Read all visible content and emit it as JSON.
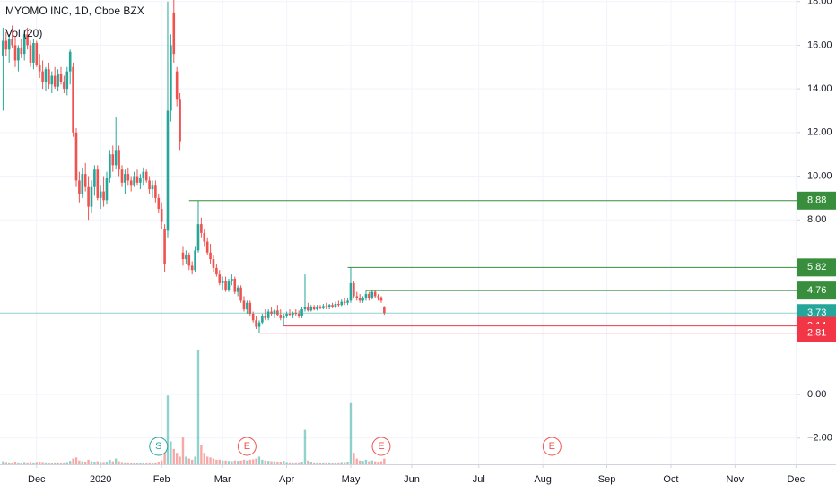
{
  "chart_data": {
    "type": "candlestick",
    "title": "MYOMO INC, 1D, Cboe BZX",
    "subtitle": "Vol (20)",
    "up_color": "#26a69a",
    "down_color": "#ef5350",
    "grid": true,
    "xlim": [
      -1,
      260.2
    ],
    "ylim": [
      -3.2,
      18.07
    ],
    "xticks": [
      {
        "value": 11,
        "label": "Dec"
      },
      {
        "value": 32,
        "label": "2020"
      },
      {
        "value": 52,
        "label": "Feb"
      },
      {
        "value": 72,
        "label": "Mar"
      },
      {
        "value": 93,
        "label": "Apr"
      },
      {
        "value": 114,
        "label": "May"
      },
      {
        "value": 134,
        "label": "Jun"
      },
      {
        "value": 156,
        "label": "Jul"
      },
      {
        "value": 177,
        "label": "Aug"
      },
      {
        "value": 198,
        "label": "Sep"
      },
      {
        "value": 219,
        "label": "Oct"
      },
      {
        "value": 240,
        "label": "Nov"
      },
      {
        "value": 260,
        "label": "Dec"
      }
    ],
    "yticks": [
      {
        "value": 18,
        "label": "18.00"
      },
      {
        "value": 16,
        "label": "16.00"
      },
      {
        "value": 14,
        "label": "14.00"
      },
      {
        "value": 12,
        "label": "12.00"
      },
      {
        "value": 10,
        "label": "10.00"
      },
      {
        "value": 8,
        "label": "8.00"
      },
      {
        "value": 0,
        "label": "0.00"
      },
      {
        "value": -2,
        "label": "−2.00"
      }
    ],
    "candles": [
      [
        15.5,
        16.8,
        13.0,
        16.2
      ],
      [
        16.2,
        16.6,
        15.5,
        15.8
      ],
      [
        15.8,
        16.5,
        15.2,
        16.3
      ],
      [
        16.3,
        16.9,
        15.9,
        16.0
      ],
      [
        16.0,
        16.4,
        15.0,
        15.3
      ],
      [
        15.3,
        16.0,
        14.8,
        15.9
      ],
      [
        15.9,
        16.3,
        15.4,
        15.6
      ],
      [
        15.6,
        16.7,
        15.3,
        16.5
      ],
      [
        16.5,
        16.8,
        15.8,
        16.0
      ],
      [
        16.0,
        16.2,
        15.0,
        15.2
      ],
      [
        15.2,
        16.3,
        14.9,
        16.1
      ],
      [
        16.1,
        16.2,
        15.0,
        15.1
      ],
      [
        15.1,
        15.6,
        14.5,
        14.8
      ],
      [
        14.8,
        15.3,
        14.0,
        14.3
      ],
      [
        14.3,
        15.0,
        13.9,
        14.9
      ],
      [
        14.9,
        15.2,
        14.0,
        14.2
      ],
      [
        14.2,
        14.8,
        13.8,
        14.6
      ],
      [
        14.6,
        15.0,
        14.0,
        14.1
      ],
      [
        14.1,
        14.9,
        13.9,
        14.7
      ],
      [
        14.7,
        15.0,
        14.2,
        14.3
      ],
      [
        14.3,
        14.6,
        13.8,
        14.0
      ],
      [
        14.0,
        15.0,
        13.7,
        14.8
      ],
      [
        14.8,
        15.8,
        14.2,
        15.7
      ],
      [
        15.0,
        15.2,
        11.8,
        12.0
      ],
      [
        12.0,
        12.2,
        9.5,
        9.8
      ],
      [
        9.8,
        10.2,
        8.8,
        9.2
      ],
      [
        9.2,
        10.4,
        9.0,
        10.1
      ],
      [
        10.1,
        10.6,
        9.3,
        9.5
      ],
      [
        9.5,
        10.0,
        8.0,
        8.6
      ],
      [
        8.6,
        9.8,
        8.3,
        9.5
      ],
      [
        9.5,
        10.5,
        9.1,
        10.3
      ],
      [
        10.3,
        10.5,
        8.9,
        9.0
      ],
      [
        9.0,
        9.6,
        8.5,
        9.3
      ],
      [
        9.3,
        10.0,
        8.6,
        8.9
      ],
      [
        8.9,
        10.2,
        8.7,
        9.9
      ],
      [
        9.9,
        11.2,
        9.7,
        11.0
      ],
      [
        11.0,
        11.4,
        10.2,
        10.5
      ],
      [
        10.5,
        12.7,
        10.3,
        11.2
      ],
      [
        11.2,
        11.4,
        10.0,
        10.3
      ],
      [
        10.3,
        10.5,
        9.5,
        9.7
      ],
      [
        9.7,
        10.3,
        9.2,
        10.1
      ],
      [
        10.1,
        10.4,
        9.6,
        9.8
      ],
      [
        9.8,
        10.0,
        9.3,
        9.6
      ],
      [
        9.6,
        10.2,
        9.5,
        10.0
      ],
      [
        10.0,
        10.3,
        9.6,
        9.7
      ],
      [
        9.7,
        10.1,
        9.4,
        9.9
      ],
      [
        9.9,
        10.4,
        9.6,
        10.2
      ],
      [
        10.2,
        10.3,
        9.7,
        9.8
      ],
      [
        9.8,
        10.0,
        9.2,
        9.4
      ],
      [
        9.4,
        9.8,
        9.0,
        9.6
      ],
      [
        9.6,
        9.8,
        8.8,
        9.0
      ],
      [
        9.0,
        9.2,
        8.3,
        8.5
      ],
      [
        8.5,
        8.8,
        7.6,
        7.9
      ],
      [
        7.6,
        7.8,
        5.6,
        6.0
      ],
      [
        7.5,
        18.0,
        7.2,
        13.0
      ],
      [
        13.0,
        16.5,
        12.5,
        16.0
      ],
      [
        17.5,
        18.3,
        15.2,
        15.6
      ],
      [
        14.8,
        15.0,
        13.2,
        13.5
      ],
      [
        13.5,
        13.8,
        11.2,
        11.6
      ],
      [
        6.5,
        6.8,
        5.9,
        6.2
      ],
      [
        6.2,
        6.6,
        6.0,
        6.4
      ],
      [
        6.4,
        6.5,
        5.7,
        5.9
      ],
      [
        5.9,
        6.1,
        5.5,
        5.7
      ],
      [
        5.7,
        6.8,
        5.6,
        6.6
      ],
      [
        6.6,
        8.88,
        6.5,
        7.8
      ],
      [
        7.8,
        8.1,
        7.2,
        7.4
      ],
      [
        7.4,
        7.6,
        6.8,
        7.0
      ],
      [
        7.0,
        7.2,
        6.4,
        6.5
      ],
      [
        6.5,
        6.9,
        6.0,
        6.2
      ],
      [
        6.2,
        6.4,
        5.6,
        5.8
      ],
      [
        5.8,
        6.0,
        5.4,
        5.5
      ],
      [
        5.5,
        5.7,
        5.0,
        5.1
      ],
      [
        5.1,
        5.4,
        4.8,
        5.2
      ],
      [
        5.2,
        5.4,
        4.7,
        4.8
      ],
      [
        4.8,
        5.3,
        4.7,
        5.2
      ],
      [
        5.2,
        5.5,
        5.0,
        5.3
      ],
      [
        5.3,
        5.4,
        4.6,
        4.7
      ],
      [
        4.7,
        5.0,
        4.5,
        4.9
      ],
      [
        4.9,
        5.0,
        4.2,
        4.3
      ],
      [
        4.3,
        4.5,
        3.8,
        3.9
      ],
      [
        3.9,
        4.3,
        3.7,
        4.2
      ],
      [
        4.2,
        4.3,
        3.6,
        3.7
      ],
      [
        3.7,
        3.8,
        3.3,
        3.4
      ],
      [
        3.4,
        3.6,
        3.0,
        3.1
      ],
      [
        3.1,
        3.4,
        2.81,
        3.3
      ],
      [
        3.3,
        3.7,
        3.2,
        3.6
      ],
      [
        3.6,
        3.9,
        3.4,
        3.5
      ],
      [
        3.5,
        3.9,
        3.4,
        3.8
      ],
      [
        3.8,
        4.0,
        3.6,
        3.7
      ],
      [
        3.7,
        3.9,
        3.5,
        3.85
      ],
      [
        3.85,
        4.1,
        3.6,
        3.65
      ],
      [
        3.65,
        3.9,
        3.4,
        3.5
      ],
      [
        3.5,
        3.7,
        3.14,
        3.6
      ],
      [
        3.6,
        3.8,
        3.5,
        3.7
      ],
      [
        3.7,
        3.9,
        3.6,
        3.65
      ],
      [
        3.65,
        3.8,
        3.5,
        3.75
      ],
      [
        3.75,
        3.9,
        3.6,
        3.7
      ],
      [
        3.7,
        3.85,
        3.5,
        3.6
      ],
      [
        3.6,
        4.0,
        3.5,
        3.9
      ],
      [
        3.9,
        5.5,
        3.8,
        4.0
      ],
      [
        4.0,
        4.2,
        3.8,
        3.85
      ],
      [
        3.85,
        4.1,
        3.8,
        4.0
      ],
      [
        4.0,
        4.1,
        3.85,
        3.9
      ],
      [
        3.9,
        4.1,
        3.85,
        4.0
      ],
      [
        4.0,
        4.1,
        3.9,
        3.95
      ],
      [
        3.95,
        4.15,
        3.9,
        4.05
      ],
      [
        4.05,
        4.2,
        3.9,
        4.0
      ],
      [
        4.0,
        4.15,
        3.9,
        4.1
      ],
      [
        4.1,
        4.2,
        3.95,
        4.0
      ],
      [
        4.0,
        4.25,
        3.95,
        4.15
      ],
      [
        4.15,
        4.3,
        4.0,
        4.1
      ],
      [
        4.1,
        4.35,
        4.05,
        4.25
      ],
      [
        4.25,
        4.4,
        4.1,
        4.2
      ],
      [
        4.2,
        4.4,
        4.1,
        4.3
      ],
      [
        4.3,
        5.82,
        4.2,
        5.1
      ],
      [
        5.1,
        5.2,
        4.4,
        4.5
      ],
      [
        4.5,
        4.7,
        4.3,
        4.4
      ],
      [
        4.4,
        4.6,
        4.2,
        4.3
      ],
      [
        4.3,
        4.5,
        4.2,
        4.4
      ],
      [
        4.4,
        4.76,
        4.3,
        4.6
      ],
      [
        4.6,
        4.7,
        4.3,
        4.4
      ],
      [
        4.4,
        4.76,
        4.35,
        4.7
      ],
      [
        4.7,
        4.75,
        4.4,
        4.5
      ],
      [
        4.5,
        4.6,
        4.3,
        4.45
      ],
      [
        4.45,
        4.5,
        4.2,
        4.3
      ],
      [
        4.0,
        4.05,
        3.65,
        3.73
      ]
    ],
    "volumes": [
      0.8,
      0.6,
      0.5,
      0.5,
      0.7,
      0.5,
      0.4,
      0.6,
      0.5,
      0.6,
      0.5,
      0.6,
      0.7,
      0.6,
      0.5,
      0.5,
      0.4,
      0.5,
      0.5,
      0.4,
      0.5,
      0.6,
      0.9,
      1.5,
      1.8,
      1.0,
      0.8,
      0.7,
      1.2,
      0.8,
      0.7,
      0.8,
      0.6,
      0.6,
      0.7,
      1.2,
      0.8,
      1.5,
      0.8,
      0.6,
      0.5,
      0.5,
      0.4,
      0.5,
      0.4,
      0.4,
      0.5,
      0.4,
      0.5,
      0.4,
      0.5,
      0.7,
      1.0,
      3.0,
      18.0,
      6.0,
      4.0,
      3.0,
      2.0,
      7.0,
      2.0,
      1.5,
      1.2,
      2.0,
      30.0,
      5.0,
      3.0,
      2.0,
      1.8,
      1.5,
      1.2,
      1.2,
      1.0,
      1.0,
      0.9,
      0.8,
      1.0,
      0.9,
      1.0,
      1.2,
      1.0,
      1.2,
      1.3,
      1.5,
      2.0,
      1.2,
      1.0,
      0.9,
      0.8,
      0.8,
      0.7,
      0.7,
      0.9,
      0.6,
      0.5,
      0.5,
      0.5,
      0.5,
      0.7,
      9.0,
      1.0,
      0.7,
      0.5,
      0.5,
      0.4,
      0.5,
      0.5,
      0.5,
      0.4,
      0.5,
      0.5,
      0.6,
      0.6,
      0.7,
      16.0,
      3.0,
      1.5,
      1.0,
      0.9,
      1.2,
      0.8,
      1.0,
      0.8,
      0.7,
      0.8,
      1.5
    ],
    "levels": [
      {
        "value": 8.88,
        "start": 61,
        "color": "#388e3c"
      },
      {
        "value": 5.82,
        "start": 113,
        "color": "#388e3c"
      },
      {
        "value": 4.76,
        "start": 119,
        "color": "#388e3c"
      },
      {
        "value": 3.14,
        "start": 92,
        "color": "#f23645"
      },
      {
        "value": 2.81,
        "start": 84,
        "color": "#f23645"
      }
    ],
    "events": [
      {
        "label": "S",
        "x": 51,
        "color": "#26a69a"
      },
      {
        "label": "E",
        "x": 80,
        "color": "#ef5350"
      },
      {
        "label": "E",
        "x": 124,
        "color": "#ef5350"
      },
      {
        "label": "E",
        "x": 180,
        "color": "#ef5350"
      }
    ]
  }
}
